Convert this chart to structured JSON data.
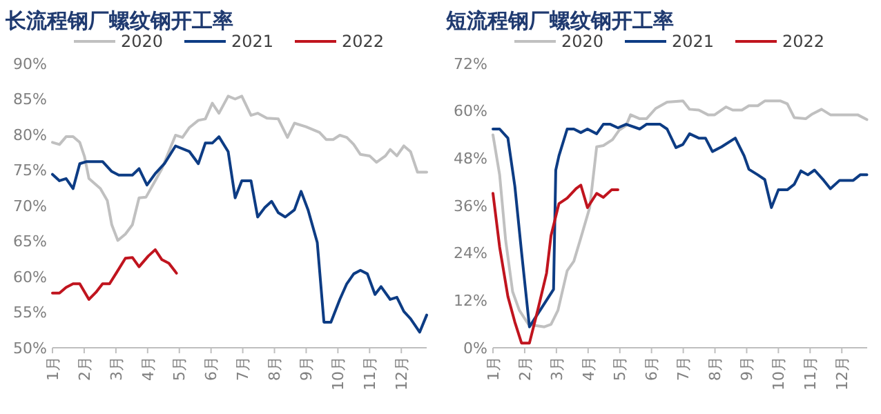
{
  "chart_data": [
    {
      "type": "line",
      "title": "长流程钢厂螺纹钢开工率",
      "legend": "top",
      "xlim": [
        1,
        12.8
      ],
      "xticks": [
        {
          "value": 1,
          "label": "1月"
        },
        {
          "value": 2,
          "label": "2月"
        },
        {
          "value": 3,
          "label": "3月"
        },
        {
          "value": 4,
          "label": "4月"
        },
        {
          "value": 5,
          "label": "5月"
        },
        {
          "value": 6,
          "label": "6月"
        },
        {
          "value": 7,
          "label": "7月"
        },
        {
          "value": 8,
          "label": "8月"
        },
        {
          "value": 9,
          "label": "9月"
        },
        {
          "value": 10,
          "label": "10月"
        },
        {
          "value": 11,
          "label": "11月"
        },
        {
          "value": 12,
          "label": "12月"
        }
      ],
      "ylim": [
        50,
        90
      ],
      "yticks": [
        {
          "value": 50,
          "label": "50%"
        },
        {
          "value": 55,
          "label": "55%"
        },
        {
          "value": 60,
          "label": "60%"
        },
        {
          "value": 65,
          "label": "65%"
        },
        {
          "value": 70,
          "label": "70%"
        },
        {
          "value": 75,
          "label": "75%"
        },
        {
          "value": 80,
          "label": "80%"
        },
        {
          "value": 85,
          "label": "85%"
        },
        {
          "value": 90,
          "label": "90%"
        }
      ],
      "series": [
        {
          "name": "2020",
          "color": "#c0c0c0",
          "x": [
            1.0,
            1.22,
            1.43,
            1.65,
            1.86,
            2.01,
            2.15,
            2.51,
            2.73,
            2.87,
            3.06,
            3.3,
            3.52,
            3.73,
            3.95,
            4.24,
            4.45,
            4.67,
            4.88,
            5.1,
            5.32,
            5.6,
            5.82,
            6.04,
            6.25,
            6.54,
            6.76,
            6.97,
            7.26,
            7.47,
            7.76,
            8.12,
            8.41,
            8.63,
            8.99,
            9.42,
            9.63,
            9.85,
            10.06,
            10.28,
            10.5,
            10.71,
            11.0,
            11.22,
            11.5,
            11.65,
            11.86,
            12.08,
            12.29,
            12.51,
            12.8
          ],
          "values": [
            78.9,
            78.6,
            79.7,
            79.7,
            78.9,
            76.9,
            73.8,
            72.4,
            70.7,
            67.3,
            65.1,
            66,
            67.3,
            71.1,
            71.2,
            73.5,
            75.2,
            77.6,
            79.9,
            79.6,
            81,
            82,
            82.2,
            84.4,
            83,
            85.4,
            85,
            85.4,
            82.7,
            83,
            82.3,
            82.2,
            79.6,
            81.6,
            81.1,
            80.3,
            79.3,
            79.3,
            79.9,
            79.6,
            78.6,
            77.2,
            77,
            76.1,
            77,
            77.9,
            77,
            78.4,
            77.6,
            74.7,
            74.7
          ]
        },
        {
          "name": "2021",
          "color": "#0d3c84",
          "x": [
            1.0,
            1.22,
            1.43,
            1.65,
            1.86,
            2.08,
            2.58,
            2.87,
            3.09,
            3.52,
            3.73,
            3.98,
            4.24,
            4.53,
            4.88,
            5.32,
            5.6,
            5.82,
            6.04,
            6.25,
            6.54,
            6.76,
            6.97,
            7.26,
            7.47,
            7.69,
            7.91,
            8.12,
            8.34,
            8.63,
            8.84,
            9.06,
            9.35,
            9.56,
            9.78,
            10.06,
            10.28,
            10.5,
            10.71,
            10.93,
            11.17,
            11.36,
            11.65,
            11.86,
            12.08,
            12.29,
            12.58,
            12.8
          ],
          "values": [
            74.4,
            73.5,
            73.8,
            72.4,
            75.9,
            76.2,
            76.2,
            74.8,
            74.3,
            74.3,
            75.2,
            72.9,
            74.5,
            75.9,
            78.4,
            77.6,
            75.9,
            78.8,
            78.8,
            79.7,
            77.6,
            71.1,
            73.5,
            73.5,
            68.4,
            69.7,
            70.6,
            69,
            68.4,
            69.4,
            72,
            69.4,
            64.8,
            53.6,
            53.6,
            56.8,
            59,
            60.4,
            60.9,
            60.4,
            57.5,
            58.6,
            56.8,
            57.1,
            55.1,
            54.1,
            52.2,
            54.6
          ]
        },
        {
          "name": "2022",
          "color": "#c0141e",
          "x": [
            1.0,
            1.22,
            1.43,
            1.65,
            1.86,
            2.15,
            2.37,
            2.58,
            2.8,
            3.01,
            3.3,
            3.52,
            3.73,
            4.02,
            4.24,
            4.45,
            4.67,
            4.91
          ],
          "values": [
            57.7,
            57.7,
            58.5,
            59,
            59,
            56.8,
            57.8,
            59,
            59,
            60.5,
            62.6,
            62.7,
            61.4,
            62.9,
            63.8,
            62.4,
            61.9,
            60.5
          ]
        }
      ]
    },
    {
      "type": "line",
      "title": "短流程钢厂螺纹钢开工率",
      "legend": "top",
      "xlim": [
        1,
        12.8
      ],
      "xticks": [
        {
          "value": 1,
          "label": "1月"
        },
        {
          "value": 2,
          "label": "2月"
        },
        {
          "value": 3,
          "label": "3月"
        },
        {
          "value": 4,
          "label": "4月"
        },
        {
          "value": 5,
          "label": "5月"
        },
        {
          "value": 6,
          "label": "6月"
        },
        {
          "value": 7,
          "label": "7月"
        },
        {
          "value": 8,
          "label": "8月"
        },
        {
          "value": 9,
          "label": "9月"
        },
        {
          "value": 10,
          "label": "10月"
        },
        {
          "value": 11,
          "label": "11月"
        },
        {
          "value": 12,
          "label": "12月"
        }
      ],
      "ylim": [
        0,
        72
      ],
      "yticks": [
        {
          "value": 0,
          "label": "0%"
        },
        {
          "value": 12,
          "label": "12%"
        },
        {
          "value": 24,
          "label": "24%"
        },
        {
          "value": 36,
          "label": "36%"
        },
        {
          "value": 48,
          "label": "48%"
        },
        {
          "value": 60,
          "label": "60%"
        },
        {
          "value": 72,
          "label": "72%"
        }
      ],
      "series": [
        {
          "name": "2020",
          "color": "#c0c0c0",
          "x": [
            1.0,
            1.21,
            1.4,
            1.62,
            1.83,
            2.12,
            2.62,
            2.83,
            3.05,
            3.34,
            3.55,
            3.77,
            4.05,
            4.27,
            4.48,
            4.77,
            4.98,
            5.2,
            5.34,
            5.63,
            5.84,
            6.13,
            6.49,
            6.99,
            7.2,
            7.49,
            7.78,
            7.99,
            8.35,
            8.56,
            8.85,
            9.07,
            9.35,
            9.57,
            10.07,
            10.28,
            10.5,
            10.86,
            11.07,
            11.36,
            11.64,
            11.93,
            12.5,
            12.79
          ],
          "values": [
            53.9,
            43.8,
            27.2,
            14.2,
            9.5,
            5.9,
            5.3,
            5.9,
            9.5,
            19.5,
            21.9,
            27.8,
            35.5,
            50.9,
            51.2,
            52.7,
            55.1,
            56.3,
            59,
            58,
            58,
            60.6,
            62.2,
            62.5,
            60.4,
            60.2,
            59,
            59,
            61,
            60.2,
            60.2,
            61.3,
            61.3,
            62.5,
            62.5,
            61.8,
            58.3,
            58,
            59.2,
            60.4,
            59,
            59,
            59,
            57.8
          ]
        },
        {
          "name": "2021",
          "color": "#0d3c84",
          "x": [
            1.0,
            1.21,
            1.47,
            1.69,
            1.9,
            2.15,
            2.91,
            2.98,
            3.08,
            3.34,
            3.55,
            3.77,
            3.98,
            4.27,
            4.48,
            4.7,
            4.94,
            5.2,
            5.63,
            5.84,
            6.27,
            6.49,
            6.77,
            6.99,
            7.2,
            7.49,
            7.7,
            7.92,
            8.21,
            8.64,
            8.92,
            9.07,
            9.35,
            9.57,
            9.78,
            10.0,
            10.28,
            10.5,
            10.71,
            10.93,
            11.14,
            11.43,
            11.64,
            11.93,
            12.36,
            12.58,
            12.79
          ],
          "values": [
            55.4,
            55.4,
            53.1,
            40.9,
            24.3,
            5.3,
            14.8,
            45,
            48.6,
            55.4,
            55.4,
            54.5,
            55.4,
            54.2,
            56.6,
            56.6,
            55.7,
            56.6,
            55.4,
            56.6,
            56.6,
            55.4,
            50.7,
            51.5,
            54.2,
            53.1,
            53.1,
            49.7,
            50.9,
            53.1,
            48.6,
            45.2,
            43.8,
            42.6,
            35.5,
            40,
            40,
            41.4,
            44.8,
            43.8,
            45,
            42.4,
            40.3,
            42.4,
            42.4,
            43.8,
            43.8
          ]
        },
        {
          "name": "2022",
          "color": "#c0141e",
          "x": [
            1.0,
            1.21,
            1.47,
            1.69,
            1.9,
            2.15,
            2.41,
            2.69,
            2.83,
            3.08,
            3.34,
            3.62,
            3.77,
            3.98,
            4.27,
            4.48,
            4.74,
            4.94
          ],
          "values": [
            39.1,
            25.5,
            13,
            6.5,
            1.2,
            1.2,
            9.5,
            18.9,
            28.4,
            36.5,
            37.9,
            40.3,
            41.2,
            35.5,
            39.1,
            38.1,
            40,
            40
          ]
        }
      ]
    }
  ]
}
